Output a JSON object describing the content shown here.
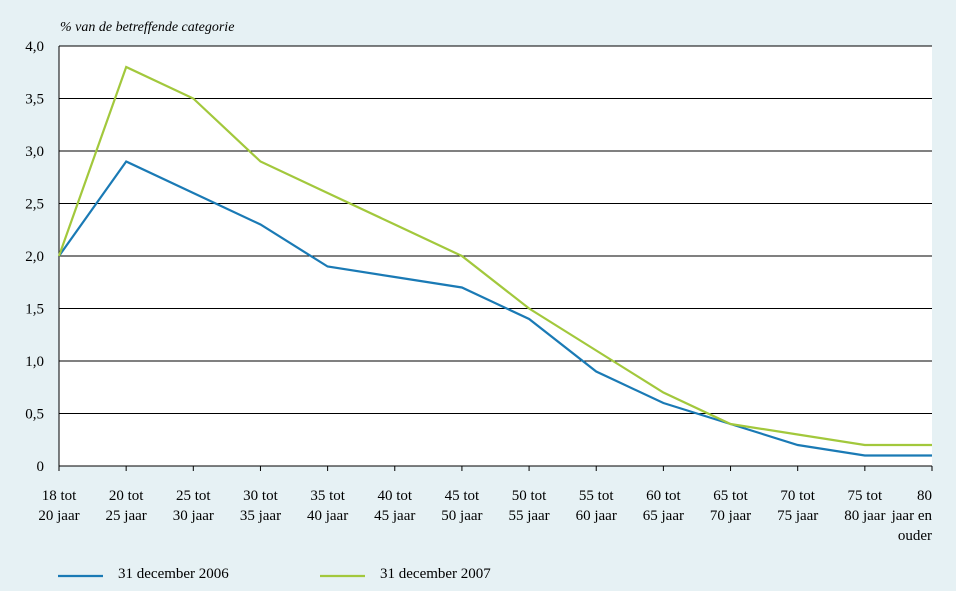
{
  "chart_data": {
    "type": "line",
    "ylabel": "% van de betreffende categorie",
    "ylim": [
      0,
      4.0
    ],
    "y_ticks": [
      "0",
      "0,5",
      "1,0",
      "1,5",
      "2,0",
      "2,5",
      "3,0",
      "3,5",
      "4,0"
    ],
    "grid": "horizontal",
    "legend_position": "bottom",
    "categories": [
      [
        "18 tot",
        "20 jaar"
      ],
      [
        "20 tot",
        "25 jaar"
      ],
      [
        "25 tot",
        "30 jaar"
      ],
      [
        "30 tot",
        "35 jaar"
      ],
      [
        "35 tot",
        "40 jaar"
      ],
      [
        "40 tot",
        "45 jaar"
      ],
      [
        "45 tot",
        "50 jaar"
      ],
      [
        "50 tot",
        "55 jaar"
      ],
      [
        "55 tot",
        "60 jaar"
      ],
      [
        "60 tot",
        "65 jaar"
      ],
      [
        "65 tot",
        "70 jaar"
      ],
      [
        "70 tot",
        "75 jaar"
      ],
      [
        "75 tot",
        "80 jaar"
      ],
      [
        "80",
        "jaar en",
        "ouder"
      ]
    ],
    "series": [
      {
        "name": "31 december 2006",
        "color": "#1a7ab5",
        "values": [
          2.0,
          2.9,
          2.6,
          2.3,
          1.9,
          1.8,
          1.7,
          1.4,
          0.9,
          0.6,
          0.4,
          0.2,
          0.1,
          0.1
        ]
      },
      {
        "name": "31 december 2007",
        "color": "#a2c83c",
        "values": [
          2.0,
          3.8,
          3.5,
          2.9,
          2.6,
          2.3,
          2.0,
          1.5,
          1.1,
          0.7,
          0.4,
          0.3,
          0.2,
          0.2
        ]
      }
    ]
  }
}
